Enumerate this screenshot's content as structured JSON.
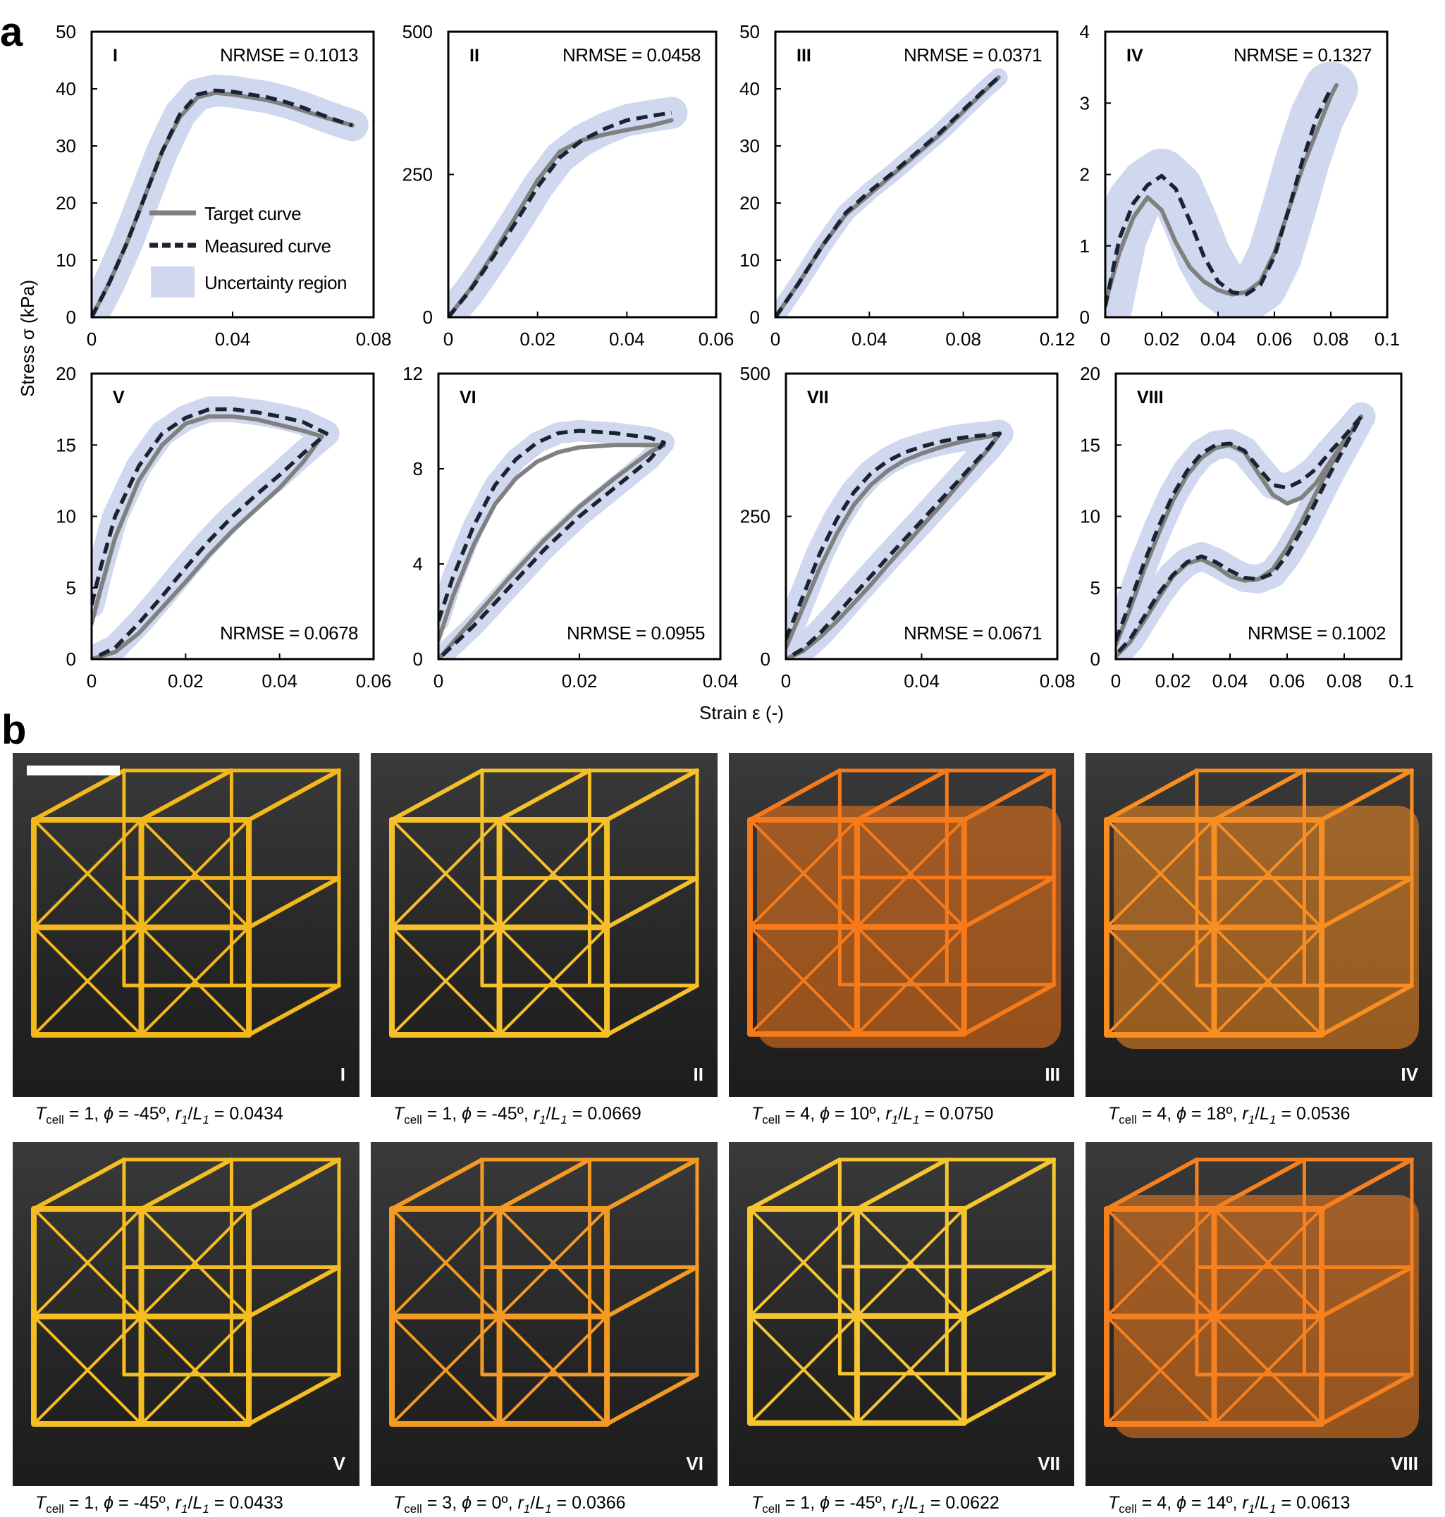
{
  "panel_a_label": "a",
  "panel_b_label": "b",
  "legend": {
    "target": "Target curve",
    "measured": "Measured curve",
    "uncertainty": "Uncertainty region"
  },
  "colors": {
    "target": "#808080",
    "measured": "#1a2233",
    "uncertainty": "#cfd8ee"
  },
  "chart_data": [
    {
      "type": "line",
      "id": "I",
      "label": "I",
      "nrmse": "NRMSE = 0.1013",
      "nrmse_pos": "top-right",
      "xlim": [
        0,
        0.08
      ],
      "xticks": [
        0,
        0.04,
        0.08
      ],
      "xtick_labels": [
        "0",
        "0.04",
        "0.08"
      ],
      "ylim": [
        0,
        50
      ],
      "yticks": [
        0,
        10,
        20,
        30,
        40,
        50
      ],
      "ytick_labels": [
        "0",
        "10",
        "20",
        "30",
        "40",
        "50"
      ],
      "series": [
        {
          "name": "Target curve",
          "x": [
            0,
            0.005,
            0.01,
            0.015,
            0.02,
            0.025,
            0.03,
            0.035,
            0.04,
            0.045,
            0.05,
            0.055,
            0.06,
            0.065,
            0.07,
            0.074
          ],
          "y": [
            0,
            6,
            13,
            21,
            29,
            35,
            38.5,
            39.3,
            39,
            38.5,
            38,
            37.2,
            36.2,
            35.2,
            34.3,
            33.6
          ]
        },
        {
          "name": "Measured curve",
          "x": [
            0,
            0.005,
            0.01,
            0.015,
            0.02,
            0.025,
            0.03,
            0.035,
            0.04,
            0.045,
            0.05,
            0.055,
            0.06,
            0.065,
            0.07,
            0.074
          ],
          "y": [
            0,
            6,
            13,
            21,
            29,
            35.5,
            39,
            39.7,
            39.5,
            39,
            38.5,
            37.7,
            36.7,
            35.5,
            34.4,
            33.6
          ]
        }
      ],
      "band_halfwidth": 2.8
    },
    {
      "type": "line",
      "id": "II",
      "label": "II",
      "nrmse": "NRMSE = 0.0458",
      "nrmse_pos": "top-right",
      "xlim": [
        0,
        0.06
      ],
      "xticks": [
        0,
        0.02,
        0.04,
        0.06
      ],
      "xtick_labels": [
        "0",
        "0.02",
        "0.04",
        "0.06"
      ],
      "ylim": [
        0,
        500
      ],
      "yticks": [
        0,
        250,
        500
      ],
      "ytick_labels": [
        "0",
        "250",
        "500"
      ],
      "series": [
        {
          "name": "Target curve",
          "x": [
            0,
            0.005,
            0.01,
            0.015,
            0.02,
            0.025,
            0.03,
            0.035,
            0.04,
            0.045,
            0.05
          ],
          "y": [
            0,
            50,
            110,
            175,
            240,
            290,
            310,
            320,
            328,
            335,
            345
          ]
        },
        {
          "name": "Measured curve",
          "x": [
            0,
            0.005,
            0.01,
            0.015,
            0.02,
            0.025,
            0.03,
            0.035,
            0.04,
            0.045,
            0.05
          ],
          "y": [
            0,
            48,
            105,
            165,
            228,
            280,
            310,
            330,
            345,
            352,
            358
          ]
        }
      ],
      "band_halfwidth": 28
    },
    {
      "type": "line",
      "id": "III",
      "label": "III",
      "nrmse": "NRMSE = 0.0371",
      "nrmse_pos": "top-right",
      "xlim": [
        0,
        0.12
      ],
      "xticks": [
        0,
        0.04,
        0.08,
        0.12
      ],
      "xtick_labels": [
        "0",
        "0.04",
        "0.08",
        "0.12"
      ],
      "ylim": [
        0,
        50
      ],
      "yticks": [
        0,
        10,
        20,
        30,
        40,
        50
      ],
      "ytick_labels": [
        "0",
        "10",
        "20",
        "30",
        "40",
        "50"
      ],
      "series": [
        {
          "name": "Target curve",
          "x": [
            0,
            0.01,
            0.02,
            0.03,
            0.04,
            0.05,
            0.06,
            0.07,
            0.08,
            0.09,
            0.095
          ],
          "y": [
            0,
            6,
            12.5,
            18,
            21.5,
            25,
            28.5,
            32,
            36,
            40,
            42
          ]
        },
        {
          "name": "Measured curve",
          "x": [
            0,
            0.01,
            0.02,
            0.03,
            0.04,
            0.05,
            0.06,
            0.07,
            0.08,
            0.09,
            0.095
          ],
          "y": [
            0,
            6,
            12.5,
            18.3,
            22,
            25.3,
            28.8,
            32.3,
            36.3,
            40.2,
            42
          ]
        }
      ],
      "band_halfwidth": 1.6
    },
    {
      "type": "line",
      "id": "IV",
      "label": "IV",
      "nrmse": "NRMSE = 0.1327",
      "nrmse_pos": "top-right",
      "xlim": [
        0,
        0.1
      ],
      "xticks": [
        0,
        0.02,
        0.04,
        0.06,
        0.08,
        0.1
      ],
      "xtick_labels": [
        "0",
        "0.02",
        "0.04",
        "0.06",
        "0.08",
        "0.1"
      ],
      "ylim": [
        0,
        4
      ],
      "yticks": [
        0,
        1,
        2,
        3,
        4
      ],
      "ytick_labels": [
        "0",
        "1",
        "2",
        "3",
        "4"
      ],
      "series": [
        {
          "name": "Target curve",
          "x": [
            0,
            0.005,
            0.01,
            0.015,
            0.02,
            0.025,
            0.03,
            0.035,
            0.04,
            0.045,
            0.05,
            0.055,
            0.06,
            0.065,
            0.07,
            0.075,
            0.08,
            0.082
          ],
          "y": [
            0.2,
            0.9,
            1.4,
            1.68,
            1.5,
            1.05,
            0.7,
            0.5,
            0.38,
            0.32,
            0.35,
            0.5,
            0.9,
            1.5,
            2.1,
            2.6,
            3.1,
            3.25
          ]
        },
        {
          "name": "Measured curve",
          "x": [
            0,
            0.005,
            0.01,
            0.015,
            0.02,
            0.025,
            0.03,
            0.035,
            0.04,
            0.045,
            0.05,
            0.055,
            0.06,
            0.065,
            0.07,
            0.075,
            0.08
          ],
          "y": [
            0.15,
            1.1,
            1.6,
            1.85,
            1.98,
            1.8,
            1.35,
            0.85,
            0.5,
            0.35,
            0.32,
            0.45,
            0.85,
            1.5,
            2.2,
            2.8,
            3.2
          ]
        }
      ],
      "band_halfwidth": 0.38
    },
    {
      "type": "line",
      "id": "V",
      "label": "V",
      "nrmse": "NRMSE = 0.0678",
      "nrmse_pos": "bottom-right",
      "xlim": [
        0,
        0.06
      ],
      "xticks": [
        0,
        0.02,
        0.04,
        0.06
      ],
      "xtick_labels": [
        "0",
        "0.02",
        "0.04",
        "0.06"
      ],
      "ylim": [
        0,
        20
      ],
      "yticks": [
        0,
        5,
        10,
        15,
        20
      ],
      "ytick_labels": [
        "0",
        "5",
        "10",
        "15",
        "20"
      ],
      "series": [
        {
          "name": "Target curve",
          "x": [
            0,
            0.002,
            0.005,
            0.01,
            0.015,
            0.02,
            0.025,
            0.03,
            0.035,
            0.04,
            0.045,
            0.049,
            0.045,
            0.04,
            0.035,
            0.03,
            0.025,
            0.02,
            0.015,
            0.01,
            0.005,
            0
          ],
          "y": [
            2.5,
            5,
            8.5,
            12.5,
            15,
            16.5,
            17,
            17,
            16.8,
            16.4,
            16,
            15.6,
            13.8,
            12,
            10.5,
            9,
            7.3,
            5.4,
            3.6,
            1.8,
            0.5,
            0
          ]
        },
        {
          "name": "Measured curve",
          "x": [
            0,
            0.002,
            0.005,
            0.01,
            0.015,
            0.02,
            0.025,
            0.03,
            0.035,
            0.04,
            0.045,
            0.05,
            0.045,
            0.04,
            0.035,
            0.03,
            0.025,
            0.02,
            0.015,
            0.01,
            0.005,
            0
          ],
          "y": [
            3.8,
            6.5,
            10,
            13.5,
            15.8,
            16.9,
            17.5,
            17.5,
            17.3,
            17,
            16.6,
            15.8,
            14.4,
            12.9,
            11.5,
            10,
            8.3,
            6.4,
            4.4,
            2.5,
            0.8,
            0
          ]
        }
      ],
      "band_halfwidth": 0.9
    },
    {
      "type": "line",
      "id": "VI",
      "label": "VI",
      "nrmse": "NRMSE = 0.0955",
      "nrmse_pos": "bottom-right",
      "xlim": [
        0,
        0.04
      ],
      "xticks": [
        0,
        0.02,
        0.04
      ],
      "xtick_labels": [
        "0",
        "0.02",
        "0.04"
      ],
      "ylim": [
        0,
        12
      ],
      "yticks": [
        0,
        4,
        8,
        12
      ],
      "ytick_labels": [
        "0",
        "4",
        "8",
        "12"
      ],
      "series": [
        {
          "name": "Target curve",
          "x": [
            0,
            0.002,
            0.005,
            0.008,
            0.011,
            0.014,
            0.017,
            0.02,
            0.025,
            0.03,
            0.032,
            0.03,
            0.025,
            0.02,
            0.015,
            0.01,
            0.005,
            0
          ],
          "y": [
            0.8,
            2.6,
            4.8,
            6.5,
            7.6,
            8.3,
            8.7,
            8.9,
            9.0,
            9.0,
            9.0,
            8.7,
            7.6,
            6.4,
            5.0,
            3.4,
            1.7,
            0
          ]
        },
        {
          "name": "Measured curve",
          "x": [
            0,
            0.002,
            0.005,
            0.008,
            0.011,
            0.014,
            0.017,
            0.02,
            0.025,
            0.03,
            0.032,
            0.03,
            0.025,
            0.02,
            0.015,
            0.01,
            0.005,
            0
          ],
          "y": [
            1.6,
            3.4,
            5.6,
            7.3,
            8.4,
            9.1,
            9.5,
            9.6,
            9.5,
            9.3,
            9.1,
            8.4,
            7.2,
            6.0,
            4.6,
            3.0,
            1.4,
            0
          ]
        }
      ],
      "band_halfwidth": 0.45
    },
    {
      "type": "line",
      "id": "VII",
      "label": "VII",
      "nrmse": "NRMSE = 0.0671",
      "nrmse_pos": "bottom-right",
      "xlim": [
        0,
        0.08
      ],
      "xticks": [
        0,
        0.04,
        0.08
      ],
      "xtick_labels": [
        "0",
        "0.04",
        "0.08"
      ],
      "ylim": [
        0,
        500
      ],
      "yticks": [
        0,
        250,
        500
      ],
      "ytick_labels": [
        "0",
        "250",
        "500"
      ],
      "series": [
        {
          "name": "Target curve",
          "x": [
            0,
            0.005,
            0.01,
            0.015,
            0.02,
            0.025,
            0.03,
            0.035,
            0.04,
            0.045,
            0.05,
            0.055,
            0.06,
            0.063,
            0.06,
            0.055,
            0.05,
            0.045,
            0.04,
            0.035,
            0.03,
            0.025,
            0.02,
            0.015,
            0.01,
            0.005,
            0
          ],
          "y": [
            20,
            90,
            160,
            220,
            270,
            305,
            330,
            348,
            360,
            370,
            378,
            385,
            390,
            395,
            370,
            335,
            300,
            265,
            232,
            198,
            165,
            130,
            98,
            66,
            38,
            14,
            0
          ]
        },
        {
          "name": "Measured curve",
          "x": [
            0,
            0.005,
            0.01,
            0.015,
            0.02,
            0.025,
            0.03,
            0.035,
            0.04,
            0.045,
            0.05,
            0.055,
            0.06,
            0.063,
            0.06,
            0.055,
            0.05,
            0.045,
            0.04,
            0.035,
            0.03,
            0.025,
            0.02,
            0.015,
            0.01,
            0.005,
            0
          ],
          "y": [
            35,
            110,
            185,
            245,
            292,
            325,
            347,
            362,
            372,
            380,
            386,
            390,
            393,
            395,
            372,
            340,
            307,
            275,
            242,
            210,
            178,
            145,
            112,
            78,
            45,
            18,
            0
          ]
        }
      ],
      "band_halfwidth": 24
    },
    {
      "type": "line",
      "id": "VIII",
      "label": "VIII",
      "nrmse": "NRMSE = 0.1002",
      "nrmse_pos": "bottom-right",
      "xlim": [
        0,
        0.1
      ],
      "xticks": [
        0,
        0.02,
        0.04,
        0.06,
        0.08,
        0.1
      ],
      "xtick_labels": [
        "0",
        "0.02",
        "0.04",
        "0.06",
        "0.08",
        "0.1"
      ],
      "ylim": [
        0,
        20
      ],
      "yticks": [
        0,
        5,
        10,
        15,
        20
      ],
      "ytick_labels": [
        "0",
        "5",
        "10",
        "15",
        "20"
      ],
      "series": [
        {
          "name": "Target curve",
          "x": [
            0,
            0.005,
            0.01,
            0.015,
            0.02,
            0.025,
            0.03,
            0.035,
            0.04,
            0.045,
            0.05,
            0.055,
            0.06,
            0.065,
            0.07,
            0.075,
            0.08,
            0.086,
            0.08,
            0.075,
            0.07,
            0.065,
            0.06,
            0.055,
            0.05,
            0.045,
            0.04,
            0.035,
            0.03,
            0.025,
            0.02,
            0.015,
            0.01,
            0.005,
            0
          ],
          "y": [
            1,
            3.5,
            6.3,
            8.8,
            11.1,
            12.9,
            14.1,
            14.8,
            15,
            14.5,
            13,
            11.5,
            10.9,
            11.3,
            12.3,
            13.8,
            15.3,
            17,
            15.2,
            13.5,
            11.6,
            9.6,
            7.8,
            6.3,
            5.6,
            5.5,
            5.8,
            6.5,
            7.0,
            6.7,
            5.8,
            4.3,
            2.7,
            1.2,
            0.2
          ]
        },
        {
          "name": "Measured curve",
          "x": [
            0,
            0.005,
            0.01,
            0.015,
            0.02,
            0.025,
            0.03,
            0.035,
            0.04,
            0.045,
            0.05,
            0.055,
            0.06,
            0.065,
            0.07,
            0.075,
            0.08,
            0.086,
            0.08,
            0.075,
            0.07,
            0.065,
            0.06,
            0.055,
            0.05,
            0.045,
            0.04,
            0.035,
            0.03,
            0.025,
            0.02,
            0.015,
            0.01,
            0.005,
            0
          ],
          "y": [
            1.3,
            4,
            6.8,
            9.3,
            11.5,
            13.2,
            14.4,
            15,
            15.1,
            14.6,
            13.4,
            12.2,
            12.0,
            12.5,
            13.3,
            14.5,
            15.6,
            17,
            14.8,
            13.0,
            11.0,
            9.0,
            7.3,
            6.0,
            5.6,
            5.7,
            6.2,
            6.8,
            7.2,
            6.8,
            5.9,
            4.6,
            3.0,
            1.4,
            0.3
          ]
        }
      ],
      "band_halfwidth": 1.0
    }
  ],
  "y_axis_label": "Stress σ (kPa)",
  "x_axis_label": "Strain ε (-)",
  "photos": [
    {
      "label": "I",
      "T": "1",
      "phi": "-45º",
      "r": "0.0434",
      "color": "#f2b81c"
    },
    {
      "label": "II",
      "T": "1",
      "phi": "-45º",
      "r": "0.0669",
      "color": "#f5c02a"
    },
    {
      "label": "III",
      "T": "4",
      "phi": "10º",
      "r": "0.0750",
      "color": "#f77a1a"
    },
    {
      "label": "IV",
      "T": "4",
      "phi": "18º",
      "r": "0.0536",
      "color": "#f88e22"
    },
    {
      "label": "V",
      "T": "1",
      "phi": "-45º",
      "r": "0.0433",
      "color": "#f4bd22"
    },
    {
      "label": "VI",
      "T": "3",
      "phi": "0º",
      "r": "0.0366",
      "color": "#f39a24"
    },
    {
      "label": "VII",
      "T": "1",
      "phi": "-45º",
      "r": "0.0622",
      "color": "#f6c530"
    },
    {
      "label": "VIII",
      "T": "4",
      "phi": "14º",
      "r": "0.0613",
      "color": "#f7801e"
    }
  ]
}
